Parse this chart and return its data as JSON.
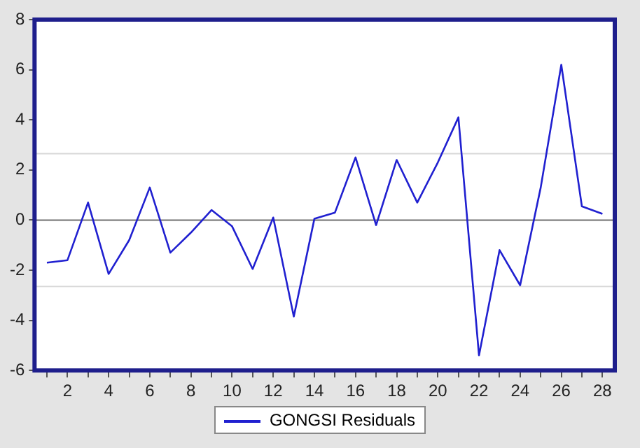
{
  "chart_data": {
    "type": "line",
    "x": [
      1,
      2,
      3,
      4,
      5,
      6,
      7,
      8,
      9,
      10,
      11,
      12,
      13,
      14,
      15,
      16,
      17,
      18,
      19,
      20,
      21,
      22,
      23,
      24,
      25,
      26,
      27,
      28
    ],
    "series": [
      {
        "name": "GONGSI Residuals",
        "color": "#2020d0",
        "values": [
          -1.7,
          -1.6,
          0.7,
          -2.15,
          -0.8,
          1.3,
          -1.3,
          -0.5,
          0.4,
          -0.25,
          -1.95,
          0.1,
          -3.85,
          0.05,
          0.3,
          2.5,
          -0.2,
          2.4,
          0.7,
          2.3,
          4.1,
          -5.4,
          -1.2,
          -2.6,
          1.3,
          6.2,
          0.55,
          0.25
        ]
      }
    ],
    "xlim": [
      0.4,
      28.6
    ],
    "xticks": [
      {
        "value": 1,
        "label": null
      },
      2,
      {
        "value": 3,
        "label": null
      },
      4,
      {
        "value": 5,
        "label": null
      },
      6,
      {
        "value": 7,
        "label": null
      },
      8,
      {
        "value": 9,
        "label": null
      },
      10,
      {
        "value": 11,
        "label": null
      },
      12,
      {
        "value": 13,
        "label": null
      },
      14,
      {
        "value": 15,
        "label": null
      },
      16,
      {
        "value": 17,
        "label": null
      },
      18,
      {
        "value": 19,
        "label": null
      },
      20,
      {
        "value": 21,
        "label": null
      },
      22,
      {
        "value": 23,
        "label": null
      },
      24,
      {
        "value": 25,
        "label": null
      },
      26,
      {
        "value": 27,
        "label": null
      },
      28
    ],
    "ylim": [
      -6,
      8
    ],
    "yticks": [
      -6,
      -4,
      -2,
      0,
      2,
      4,
      6,
      8
    ],
    "ref_lines": [
      {
        "axis": "y",
        "value": 0,
        "label": null,
        "color": "#707070",
        "line_style": "solid"
      },
      {
        "axis": "y",
        "value": 2.65,
        "label": null,
        "color": "#d8d8d8",
        "line_style": "solid"
      },
      {
        "axis": "y",
        "value": -2.65,
        "label": null,
        "color": "#d8d8d8",
        "line_style": "solid"
      }
    ],
    "grid": false,
    "legend": "bottom",
    "marker": "none",
    "line_style": "solid"
  }
}
